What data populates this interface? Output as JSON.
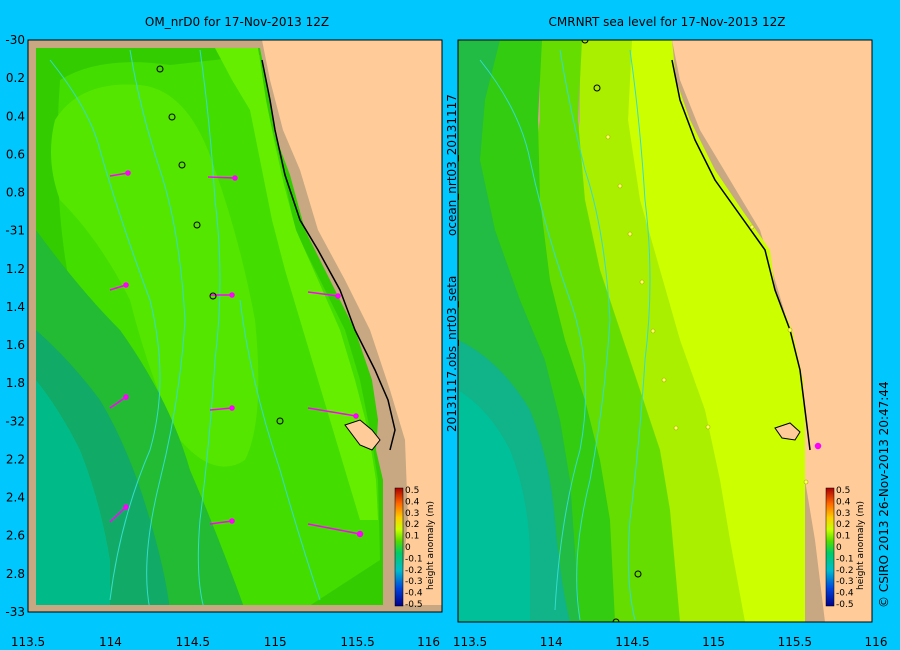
{
  "colors": {
    "background": "#00c8ff",
    "land": "#ffcc99",
    "shelf": "#c8a882",
    "arrow": "#ff00ff"
  },
  "left_panel": {
    "title": "OM_nrD0 for 17-Nov-2013 12Z",
    "y_ticks": [
      "-30",
      "0.2",
      "0.4",
      "0.6",
      "0.8",
      "-31",
      "1.2",
      "1.4",
      "1.6",
      "1.8",
      "-32",
      "2.2",
      "2.4",
      "2.6",
      "2.8",
      "-33"
    ],
    "x_ticks": [
      "113.5",
      "114",
      "114.5",
      "115",
      "115.5",
      "116"
    ]
  },
  "right_panel": {
    "title": "CMRNRT sea level  for 17-Nov-2013 12Z",
    "x_ticks": [
      "113.5",
      "114",
      "114.5",
      "115",
      "115.5",
      "116"
    ]
  },
  "colorbar": {
    "label": "height anomaly (m)",
    "ticks": [
      "0.5",
      "0.4",
      "0.3",
      "0.2",
      "0.1",
      "0",
      "-0.1",
      "-0.2",
      "-0.3",
      "-0.4",
      "-0.5"
    ]
  },
  "side_texts": {
    "file_label": "20131117.obs_nrt03_seta",
    "run_label": "ocean_nrt03_20131117",
    "copyright": "© CSIRO 2013  26-Nov-2013 20:47:44"
  }
}
